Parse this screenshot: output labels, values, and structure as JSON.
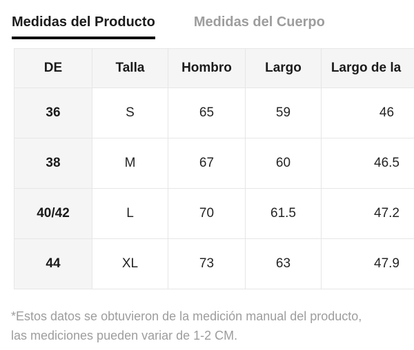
{
  "tabs": [
    {
      "label": "Medidas del Producto",
      "active": true
    },
    {
      "label": "Medidas del Cuerpo",
      "active": false
    }
  ],
  "table": {
    "columns": [
      "DE",
      "Talla",
      "Hombro",
      "Largo",
      "Largo de la"
    ],
    "rows": [
      [
        "36",
        "S",
        "65",
        "59",
        "46"
      ],
      [
        "38",
        "M",
        "67",
        "60",
        "46.5"
      ],
      [
        "40/42",
        "L",
        "70",
        "61.5",
        "47.2"
      ],
      [
        "44",
        "XL",
        "73",
        "63",
        "47.9"
      ]
    ]
  },
  "footnote": {
    "line1": "*Estos datos se obtuvieron de la medición manual del producto,",
    "line2": "las mediciones pueden variar de 1-2 CM."
  },
  "colors": {
    "text-primary": "#1b1b1b",
    "text-secondary": "#9d9d9d",
    "cell-bg": "#f5f5f5",
    "border": "#e6e6e6",
    "underline": "#0d0d0d",
    "page-bg": "#ffffff"
  }
}
